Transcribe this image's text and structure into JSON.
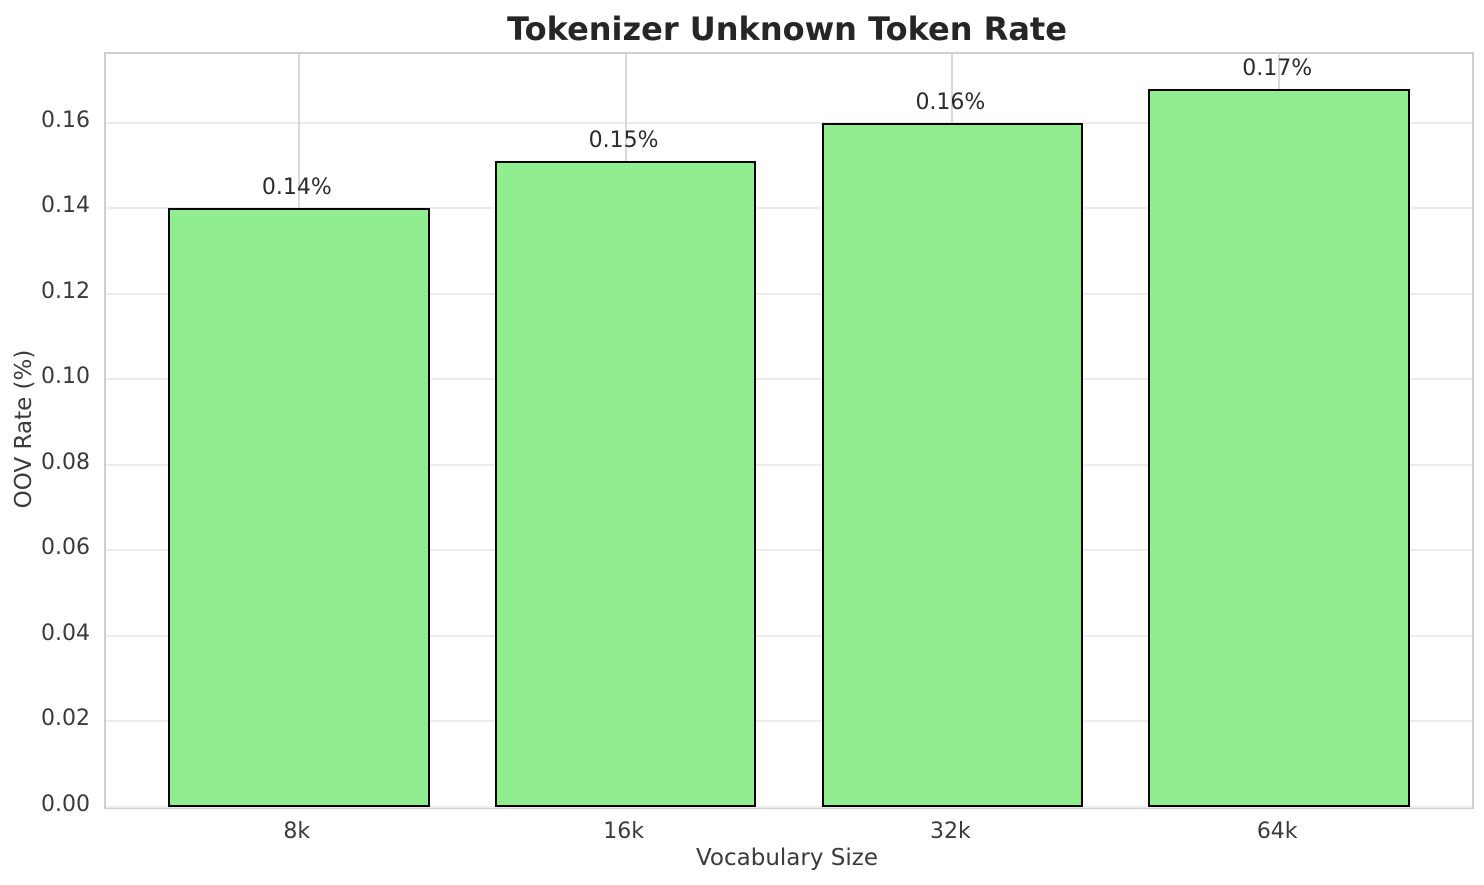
{
  "chart_data": {
    "type": "bar",
    "title": "Tokenizer Unknown Token Rate",
    "xlabel": "Vocabulary Size",
    "ylabel": "OOV Rate (%)",
    "categories": [
      "8k",
      "16k",
      "32k",
      "64k"
    ],
    "values": [
      0.14,
      0.151,
      0.16,
      0.168
    ],
    "bar_labels": [
      "0.14%",
      "0.15%",
      "0.16%",
      "0.17%"
    ],
    "ytick_labels": [
      "0.00",
      "0.02",
      "0.04",
      "0.06",
      "0.08",
      "0.10",
      "0.12",
      "0.14",
      "0.16"
    ],
    "ytick_values": [
      0.0,
      0.02,
      0.04,
      0.06,
      0.08,
      0.1,
      0.12,
      0.14,
      0.16
    ],
    "ylim": [
      0,
      0.1761
    ],
    "grid": true,
    "legend": null,
    "bar_color": "#90EE90",
    "bar_edge_color": "#000000",
    "background_color": "#ffffff",
    "grid_color_horizontal": "#ececec",
    "grid_color_vertical": "#d9d9d9"
  }
}
